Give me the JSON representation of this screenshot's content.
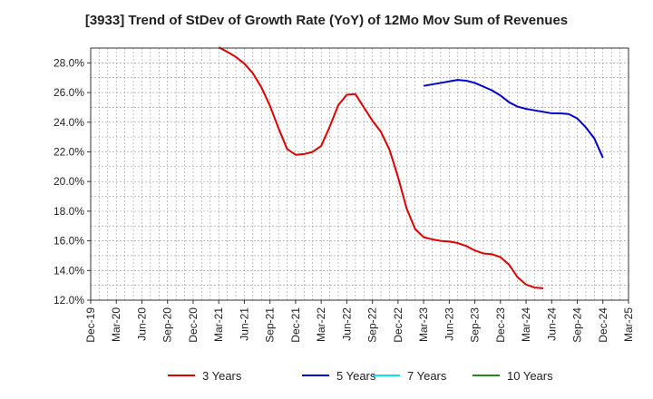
{
  "chart_data": {
    "type": "line",
    "title": "[3933]  Trend of StDev of Growth Rate (YoY) of 12Mo Mov Sum of Revenues",
    "xlabel": "",
    "ylabel": "",
    "ylim": [
      12.0,
      29.0
    ],
    "yticks": [
      12.0,
      14.0,
      16.0,
      18.0,
      20.0,
      22.0,
      24.0,
      26.0,
      28.0
    ],
    "ytick_labels": [
      "12.0%",
      "14.0%",
      "16.0%",
      "18.0%",
      "20.0%",
      "22.0%",
      "24.0%",
      "26.0%",
      "28.0%"
    ],
    "x_categories": [
      "Dec-19",
      "Mar-20",
      "Jun-20",
      "Sep-20",
      "Dec-20",
      "Mar-21",
      "Jun-21",
      "Sep-21",
      "Dec-21",
      "Mar-22",
      "Jun-22",
      "Sep-22",
      "Dec-22",
      "Mar-23",
      "Jun-23",
      "Sep-23",
      "Dec-23",
      "Mar-24",
      "Jun-24",
      "Sep-24",
      "Dec-24",
      "Mar-25"
    ],
    "grid": true,
    "legend_position": "bottom",
    "series": [
      {
        "name": "3 Years",
        "color": "#dd0000",
        "points": [
          [
            15,
            29.05
          ],
          [
            16,
            28.75
          ],
          [
            17,
            28.4
          ],
          [
            18,
            27.95
          ],
          [
            19,
            27.3
          ],
          [
            20,
            26.35
          ],
          [
            21,
            25.1
          ],
          [
            22,
            23.6
          ],
          [
            23,
            22.2
          ],
          [
            24,
            21.8
          ],
          [
            25,
            21.85
          ],
          [
            26,
            22.0
          ],
          [
            27,
            22.4
          ],
          [
            28,
            23.7
          ],
          [
            29,
            25.15
          ],
          [
            30,
            25.85
          ],
          [
            31,
            25.9
          ],
          [
            32,
            25.0
          ],
          [
            33,
            24.1
          ],
          [
            34,
            23.35
          ],
          [
            35,
            22.15
          ],
          [
            36,
            20.3
          ],
          [
            37,
            18.2
          ],
          [
            38,
            16.8
          ],
          [
            39,
            16.25
          ],
          [
            40,
            16.1
          ],
          [
            41,
            16.0
          ],
          [
            42,
            15.95
          ],
          [
            43,
            15.85
          ],
          [
            44,
            15.65
          ],
          [
            45,
            15.35
          ],
          [
            46,
            15.15
          ],
          [
            47,
            15.1
          ],
          [
            48,
            14.9
          ],
          [
            49,
            14.4
          ],
          [
            50,
            13.55
          ],
          [
            51,
            13.05
          ],
          [
            52,
            12.85
          ],
          [
            53,
            12.8
          ]
        ]
      },
      {
        "name": "5 Years",
        "color": "#0000cc",
        "points": [
          [
            39,
            26.45
          ],
          [
            40,
            26.55
          ],
          [
            41,
            26.65
          ],
          [
            42,
            26.75
          ],
          [
            43,
            26.85
          ],
          [
            44,
            26.8
          ],
          [
            45,
            26.65
          ],
          [
            46,
            26.4
          ],
          [
            47,
            26.15
          ],
          [
            48,
            25.8
          ],
          [
            49,
            25.35
          ],
          [
            50,
            25.05
          ],
          [
            51,
            24.9
          ],
          [
            52,
            24.8
          ],
          [
            53,
            24.7
          ],
          [
            54,
            24.6
          ],
          [
            55,
            24.6
          ],
          [
            56,
            24.55
          ],
          [
            57,
            24.25
          ],
          [
            58,
            23.65
          ],
          [
            59,
            22.9
          ],
          [
            60,
            21.6
          ]
        ]
      },
      {
        "name": "7 Years",
        "color": "#00e5ee",
        "points": []
      },
      {
        "name": "10 Years",
        "color": "#228b22",
        "points": []
      }
    ]
  }
}
